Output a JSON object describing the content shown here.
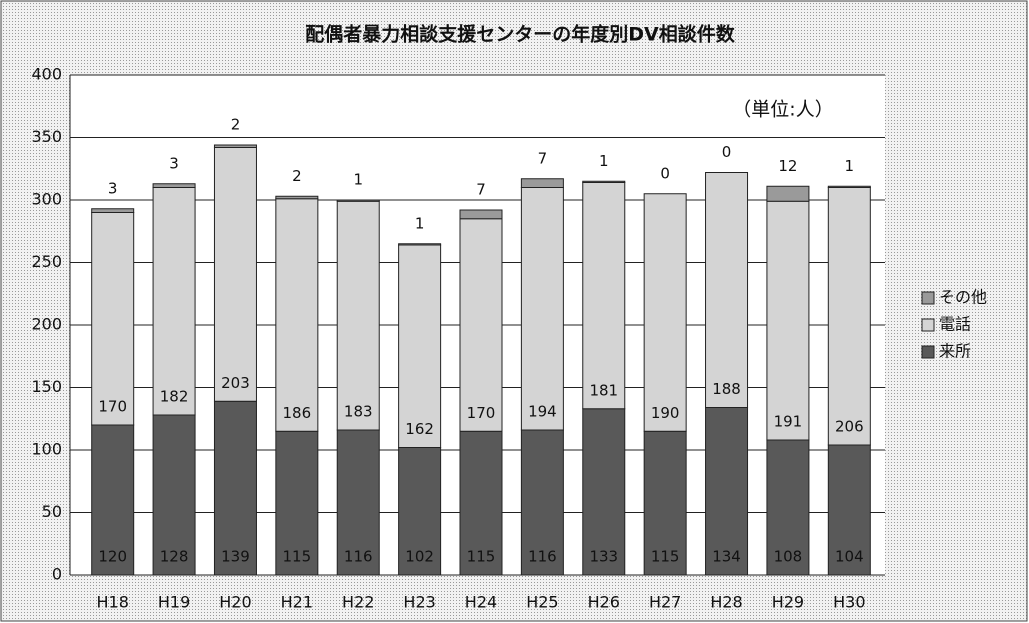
{
  "chart_data": {
    "type": "stacked_bar",
    "title": "配偶者暴力相談支援センターの年度別DV相談件数",
    "annotation": "（単位:人）",
    "categories": [
      "H18",
      "H19",
      "H20",
      "H21",
      "H22",
      "H23",
      "H24",
      "H25",
      "H26",
      "H27",
      "H28",
      "H29",
      "H30"
    ],
    "series": [
      {
        "name": "来所",
        "color": "#595959",
        "values": [
          120,
          128,
          139,
          115,
          116,
          102,
          115,
          116,
          133,
          115,
          134,
          108,
          104
        ]
      },
      {
        "name": "電話",
        "color": "#d4d4d4",
        "values": [
          170,
          182,
          203,
          186,
          183,
          162,
          170,
          194,
          181,
          190,
          188,
          191,
          206
        ]
      },
      {
        "name": "その他",
        "color": "#9a9a9a",
        "values": [
          3,
          3,
          2,
          2,
          1,
          1,
          7,
          7,
          1,
          0,
          0,
          12,
          1
        ]
      }
    ],
    "ylim": [
      0,
      400
    ],
    "yticks": [
      0,
      50,
      100,
      150,
      200,
      250,
      300,
      350,
      400
    ],
    "grid": true,
    "legend": "right"
  }
}
